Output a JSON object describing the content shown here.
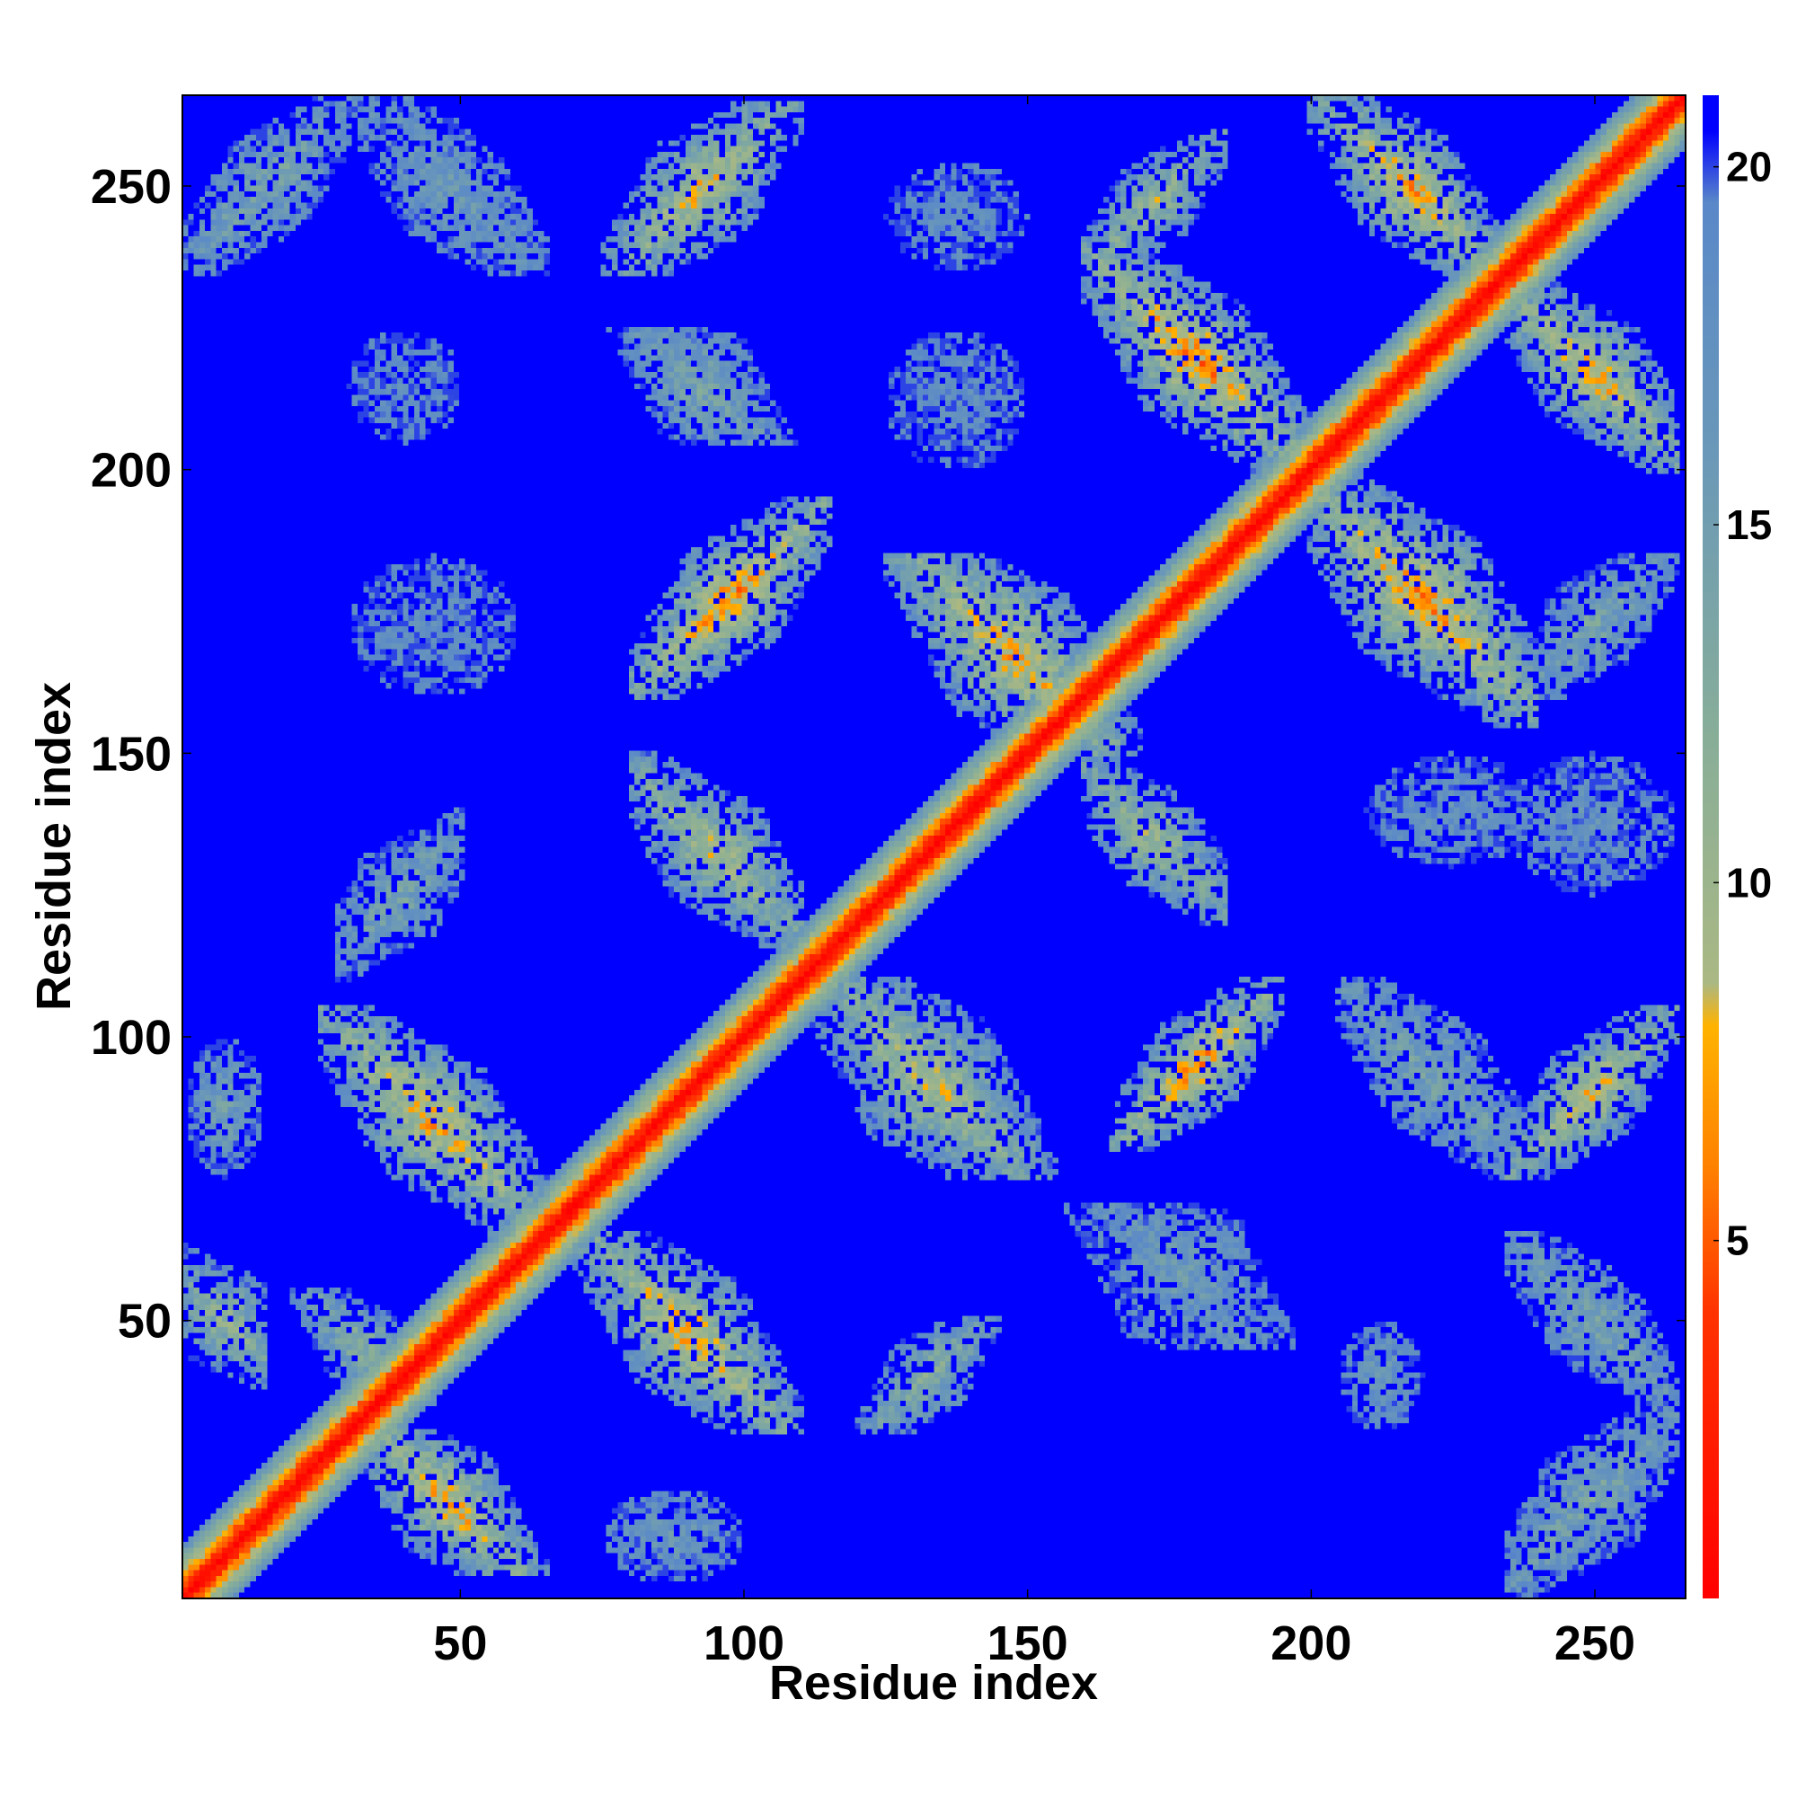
{
  "chart_data": {
    "type": "heatmap",
    "title": "",
    "xlabel": "Residue index",
    "ylabel": "Residue index",
    "xlim": [
      1,
      266
    ],
    "ylim": [
      1,
      266
    ],
    "x_ticks": [
      50,
      100,
      150,
      200,
      250
    ],
    "y_ticks": [
      50,
      100,
      150,
      200,
      250
    ],
    "colorbar": {
      "range": [
        0,
        21
      ],
      "ticks": [
        5,
        10,
        15,
        20
      ],
      "stops": [
        {
          "value": 0,
          "color": "#ff0000"
        },
        {
          "value": 4,
          "color": "#ff3300"
        },
        {
          "value": 6,
          "color": "#ff8000"
        },
        {
          "value": 8,
          "color": "#ffb300"
        },
        {
          "value": 8.6,
          "color": "#aab884"
        },
        {
          "value": 12,
          "color": "#88ae98"
        },
        {
          "value": 16,
          "color": "#6a98b8"
        },
        {
          "value": 19.5,
          "color": "#5a88c8"
        },
        {
          "value": 20.5,
          "color": "#0000ff"
        }
      ],
      "background_color": "#0000ff"
    },
    "contact_regions": [
      {
        "x": [
          1,
          60
        ],
        "y": [
          1,
          60
        ],
        "peak": 0,
        "kind": "diagonal"
      },
      {
        "x": [
          60,
          266
        ],
        "y": [
          60,
          266
        ],
        "peak": 0,
        "kind": "diagonal"
      },
      {
        "x": [
          1,
          15
        ],
        "y": [
          35,
          65
        ],
        "peak": 11,
        "kind": "anti"
      },
      {
        "x": [
          20,
          45
        ],
        "y": [
          35,
          55
        ],
        "peak": 12,
        "kind": "anti"
      },
      {
        "x": [
          30,
          65
        ],
        "y": [
          5,
          30
        ],
        "peak": 7,
        "kind": "anti"
      },
      {
        "x": [
          25,
          65
        ],
        "y": [
          65,
          105
        ],
        "peak": 7,
        "kind": "anti"
      },
      {
        "x": [
          1,
          15
        ],
        "y": [
          75,
          100
        ],
        "peak": 15,
        "kind": "patch"
      },
      {
        "x": [
          28,
          50
        ],
        "y": [
          110,
          140
        ],
        "peak": 14,
        "kind": "parallel"
      },
      {
        "x": [
          70,
          110
        ],
        "y": [
          30,
          65
        ],
        "peak": 7,
        "kind": "anti"
      },
      {
        "x": [
          75,
          100
        ],
        "y": [
          3,
          20
        ],
        "peak": 16,
        "kind": "patch"
      },
      {
        "x": [
          120,
          145
        ],
        "y": [
          30,
          50
        ],
        "peak": 12,
        "kind": "parallel"
      },
      {
        "x": [
          80,
          110
        ],
        "y": [
          115,
          150
        ],
        "peak": 9,
        "kind": "anti"
      },
      {
        "x": [
          110,
          155
        ],
        "y": [
          75,
          110
        ],
        "peak": 9,
        "kind": "anti"
      },
      {
        "x": [
          80,
          115
        ],
        "y": [
          160,
          195
        ],
        "peak": 6,
        "kind": "parallel"
      },
      {
        "x": [
          30,
          60
        ],
        "y": [
          160,
          185
        ],
        "peak": 18,
        "kind": "patch"
      },
      {
        "x": [
          30,
          50
        ],
        "y": [
          205,
          225
        ],
        "peak": 18,
        "kind": "patch"
      },
      {
        "x": [
          75,
          110
        ],
        "y": [
          205,
          225
        ],
        "peak": 14,
        "kind": "anti"
      },
      {
        "x": [
          75,
          110
        ],
        "y": [
          235,
          265
        ],
        "peak": 8,
        "kind": "parallel"
      },
      {
        "x": [
          1,
          30
        ],
        "y": [
          235,
          266
        ],
        "peak": 14,
        "kind": "parallel"
      },
      {
        "x": [
          30,
          65
        ],
        "y": [
          235,
          266
        ],
        "peak": 16,
        "kind": "anti"
      },
      {
        "x": [
          125,
          150
        ],
        "y": [
          235,
          255
        ],
        "peak": 18,
        "kind": "patch"
      },
      {
        "x": [
          125,
          170
        ],
        "y": [
          150,
          185
        ],
        "peak": 7,
        "kind": "anti"
      },
      {
        "x": [
          160,
          185
        ],
        "y": [
          120,
          150
        ],
        "peak": 10,
        "kind": "anti"
      },
      {
        "x": [
          165,
          195
        ],
        "y": [
          80,
          110
        ],
        "peak": 6,
        "kind": "parallel"
      },
      {
        "x": [
          155,
          200
        ],
        "y": [
          45,
          70
        ],
        "peak": 16,
        "kind": "anti"
      },
      {
        "x": [
          205,
          220
        ],
        "y": [
          30,
          50
        ],
        "peak": 16,
        "kind": "patch"
      },
      {
        "x": [
          205,
          240
        ],
        "y": [
          75,
          110
        ],
        "peak": 14,
        "kind": "anti"
      },
      {
        "x": [
          210,
          240
        ],
        "y": [
          130,
          150
        ],
        "peak": 17,
        "kind": "patch"
      },
      {
        "x": [
          235,
          265
        ],
        "y": [
          75,
          105
        ],
        "peak": 8,
        "kind": "parallel"
      },
      {
        "x": [
          235,
          265
        ],
        "y": [
          125,
          150
        ],
        "peak": 17,
        "kind": "patch"
      },
      {
        "x": [
          235,
          265
        ],
        "y": [
          1,
          35
        ],
        "peak": 14,
        "kind": "parallel"
      },
      {
        "x": [
          235,
          265
        ],
        "y": [
          35,
          65
        ],
        "peak": 14,
        "kind": "anti"
      },
      {
        "x": [
          160,
          200
        ],
        "y": [
          200,
          240
        ],
        "peak": 6,
        "kind": "anti"
      },
      {
        "x": [
          200,
          240
        ],
        "y": [
          155,
          200
        ],
        "peak": 6,
        "kind": "anti"
      },
      {
        "x": [
          235,
          265
        ],
        "y": [
          160,
          185
        ],
        "peak": 14,
        "kind": "parallel"
      },
      {
        "x": [
          235,
          265
        ],
        "y": [
          200,
          235
        ],
        "peak": 7,
        "kind": "anti"
      },
      {
        "x": [
          200,
          235
        ],
        "y": [
          235,
          266
        ],
        "peak": 7,
        "kind": "anti"
      },
      {
        "x": [
          160,
          185
        ],
        "y": [
          235,
          260
        ],
        "peak": 10,
        "kind": "parallel"
      },
      {
        "x": [
          125,
          150
        ],
        "y": [
          200,
          225
        ],
        "peak": 18,
        "kind": "patch"
      }
    ]
  }
}
